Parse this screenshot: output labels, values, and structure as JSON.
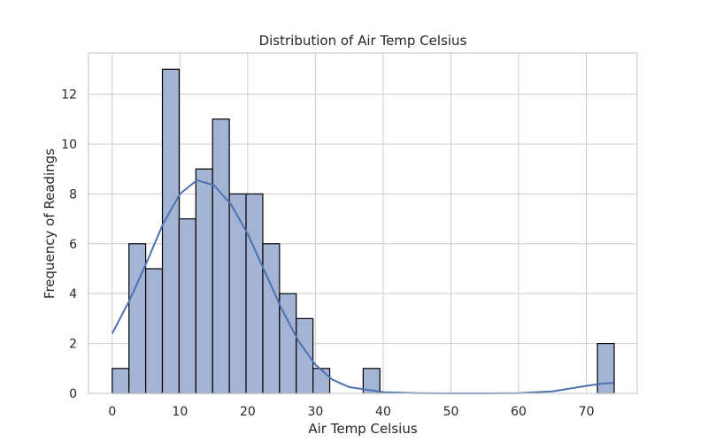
{
  "chart_data": {
    "type": "bar",
    "title": "Distribution of Air Temp Celsius",
    "xlabel": "Air Temp Celsius",
    "ylabel": "Frequency of Readings",
    "xlim": [
      -3.5,
      77.5
    ],
    "ylim": [
      0,
      13.65
    ],
    "x_ticks": [
      0,
      10,
      20,
      30,
      40,
      50,
      60,
      70
    ],
    "y_ticks": [
      0,
      2,
      4,
      6,
      8,
      10,
      12
    ],
    "bin_width": 2.47,
    "bin_start": 0,
    "counts": [
      1,
      6,
      5,
      13,
      7,
      9,
      11,
      8,
      8,
      6,
      4,
      3,
      1,
      0,
      0,
      1,
      0,
      0,
      0,
      0,
      0,
      0,
      0,
      0,
      0,
      0,
      0,
      0,
      0,
      2
    ],
    "kde": {
      "x": [
        0,
        2.5,
        5,
        7.5,
        10,
        12.5,
        15,
        17.5,
        20,
        22.5,
        25,
        27.5,
        30,
        32.5,
        35,
        40,
        45,
        50,
        55,
        60,
        65,
        70,
        72.5,
        74
      ],
      "y": [
        2.4,
        3.7,
        5.2,
        6.8,
        8.0,
        8.55,
        8.35,
        7.6,
        6.4,
        4.9,
        3.4,
        2.1,
        1.15,
        0.55,
        0.25,
        0.05,
        0.01,
        0,
        0,
        0.01,
        0.08,
        0.3,
        0.4,
        0.42
      ]
    },
    "colors": {
      "bar_fill": "#a4b4d4",
      "bar_edge": "#000000",
      "kde_line": "#4c72b0",
      "grid": "#cccccc"
    },
    "grid": true
  }
}
